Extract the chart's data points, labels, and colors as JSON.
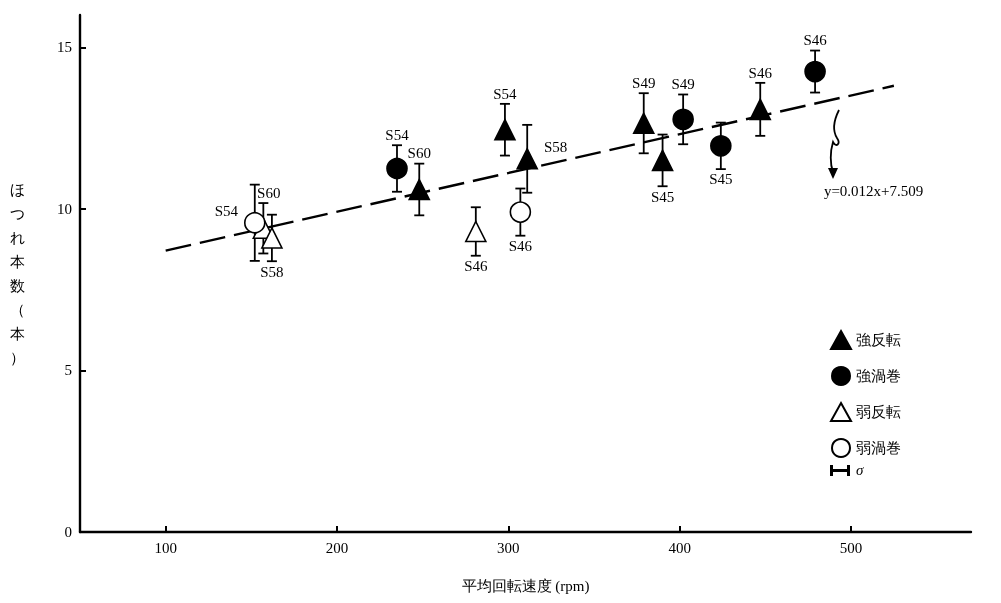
{
  "chart_data": {
    "type": "scatter",
    "xlabel": "平均回転速度 (rpm)",
    "ylabel": "ほつれ本数（本）",
    "xlim": [
      50,
      570
    ],
    "xticks": [
      100,
      200,
      300,
      400,
      500
    ],
    "ylim": [
      0,
      16
    ],
    "yticks": [
      0,
      5,
      10,
      15
    ],
    "grid": false,
    "legend": "bottom right",
    "annotations": [
      "y=0.012x+7.509",
      "σ"
    ],
    "series": [
      {
        "name": "強反転",
        "color": "#000000",
        "marker": "triangle",
        "x": [
          248,
          298,
          311,
          379,
          390,
          447
        ],
        "values": [
          10.6,
          12.45,
          11.55,
          12.65,
          11.5,
          13.08
        ],
        "errors": [
          0.8,
          0.8,
          1.05,
          0.93,
          0.8,
          0.82
        ],
        "value_labels": [
          "S60",
          "S54",
          "S58",
          "S49",
          "S45",
          "S46"
        ]
      },
      {
        "name": "強渦巻",
        "color": "#000000",
        "marker": "circle",
        "x": [
          235,
          402,
          424,
          479
        ],
        "values": [
          11.25,
          12.77,
          11.95,
          14.25
        ],
        "errors": [
          0.72,
          0.77,
          0.72,
          0.65
        ],
        "value_labels": [
          "S54",
          "S49",
          "S45",
          "S46"
        ]
      },
      {
        "name": "弱反転",
        "color": "#ffffff",
        "marker": "triangle",
        "x": [
          157,
          162,
          281
        ],
        "values": [
          9.4,
          9.1,
          9.3
        ],
        "errors": [
          0.78,
          0.72,
          0.75
        ],
        "value_labels": [
          "S60",
          "S58",
          "S46"
        ]
      },
      {
        "name": "弱渦巻",
        "color": "#ffffff",
        "marker": "circle",
        "x": [
          152,
          307
        ],
        "values": [
          9.57,
          9.9
        ],
        "errors": [
          1.18,
          0.73
        ],
        "value_labels": [
          "S54",
          "S46"
        ]
      },
      {
        "type": "line",
        "color": "#000000",
        "marker": "none",
        "line_style": "dashed",
        "x": [
          100,
          525
        ],
        "values": [
          8.71,
          13.81
        ]
      }
    ]
  }
}
